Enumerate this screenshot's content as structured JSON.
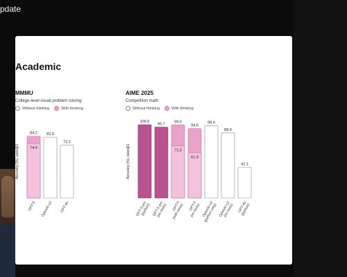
{
  "topbar": {
    "partial_title": "pdate"
  },
  "slide": {
    "title": "Academic"
  },
  "colors": {
    "with_thinking_light": "#f3c2dc",
    "with_thinking_mid": "#e9a3c9",
    "pro_dark": "#b8538f",
    "outline": "#888888",
    "accent_stroke": "#c46fa5"
  },
  "chart_data": [
    {
      "type": "bar",
      "title": "MMMU",
      "subtitle": "College-level visual problem solving",
      "legend": [
        "Without thinking",
        "With thinking"
      ],
      "ylabel": "Accuracy (%), pass@1",
      "ylim": [
        0,
        100
      ],
      "categories": [
        "GPT-5",
        "OpenAI o3",
        "GPT-4o"
      ],
      "bars": [
        {
          "category": "GPT-5",
          "base": 74.4,
          "total": 84.2,
          "label_base": "74.4",
          "label_total": "84.2",
          "style": "stacked"
        },
        {
          "category": "OpenAI o3",
          "total": 82.9,
          "label_total": "82.9",
          "style": "outline"
        },
        {
          "category": "GPT-4o",
          "total": 72.2,
          "label_total": "72.2",
          "style": "outline"
        }
      ]
    },
    {
      "type": "bar",
      "title": "AIME 2025",
      "subtitle": "Competition math",
      "legend": [
        "Without thinking",
        "With thinking"
      ],
      "ylabel": "Accuracy (%), pass@1",
      "ylim": [
        0,
        100
      ],
      "categories": [
        "GPT-5 pro (python)",
        "GPT-5 pro (no tools)",
        "GPT-5 (with tools)",
        "GPT-5 (no tools)",
        "OpenAI o3 (python only)",
        "OpenAI o3 (no tools)",
        "GPT-4o (python)"
      ],
      "bars": [
        {
          "category": "GPT-5 pro (python)",
          "lines": [
            "GPT-5 pro",
            "(python)"
          ],
          "total": 100.0,
          "label_total": "100.0",
          "style": "dark"
        },
        {
          "category": "GPT-5 pro (no tools)",
          "lines": [
            "GPT-5 pro",
            "(no tools)"
          ],
          "total": 96.7,
          "label_total": "96.7",
          "style": "dark"
        },
        {
          "category": "GPT-5 (with tools)",
          "lines": [
            "GPT-5",
            "(with tools)"
          ],
          "base": 71.0,
          "total": 99.6,
          "label_base": "71.0",
          "label_total": "99.6",
          "style": "stacked"
        },
        {
          "category": "GPT-5 (no tools)",
          "lines": [
            "GPT-5",
            "(no tools)"
          ],
          "base": 61.9,
          "total": 94.6,
          "label_base": "61.9",
          "label_total": "94.6",
          "style": "stacked"
        },
        {
          "category": "OpenAI o3 (python only)",
          "lines": [
            "OpenAI o3",
            "(python only)"
          ],
          "total": 98.4,
          "label_total": "98.4",
          "style": "outline"
        },
        {
          "category": "OpenAI o3 (no tools)",
          "lines": [
            "OpenAI o3",
            "(no tools)"
          ],
          "total": 88.9,
          "label_total": "88.9",
          "style": "outline"
        },
        {
          "category": "GPT-4o (python)",
          "lines": [
            "GPT-4o",
            "(python)"
          ],
          "total": 42.1,
          "label_total": "42.1",
          "style": "outline"
        }
      ]
    }
  ]
}
